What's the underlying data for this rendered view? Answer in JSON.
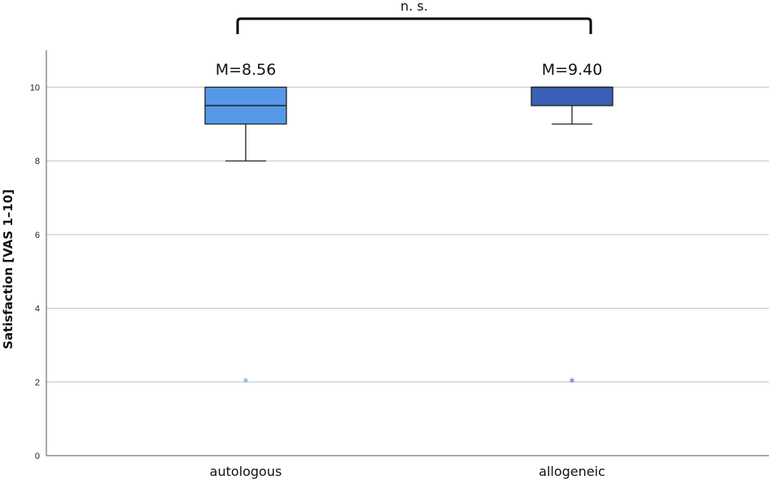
{
  "chart_data": {
    "type": "boxplot",
    "ylabel": "Satisfaction [VAS 1–10]",
    "ylim": [
      0,
      11
    ],
    "yticks": [
      0,
      2,
      4,
      6,
      8,
      10
    ],
    "grid": true,
    "categories": [
      "autologous",
      "allogeneic"
    ],
    "series": [
      {
        "category": "autologous",
        "whisker_low": 8,
        "q1": 9,
        "median": 9.5,
        "q3": 10,
        "whisker_high": 10,
        "outliers": [
          2
        ],
        "mean_label": "M=8.56",
        "color": "#5599e6"
      },
      {
        "category": "allogeneic",
        "whisker_low": 9,
        "q1": 9.5,
        "median": 10,
        "q3": 10,
        "whisker_high": 10,
        "outliers": [
          2
        ],
        "mean_label": "M=9.40",
        "color": "#3a5fb5"
      }
    ],
    "significance": {
      "label": "n. s.",
      "between": [
        "autologous",
        "allogeneic"
      ]
    }
  }
}
